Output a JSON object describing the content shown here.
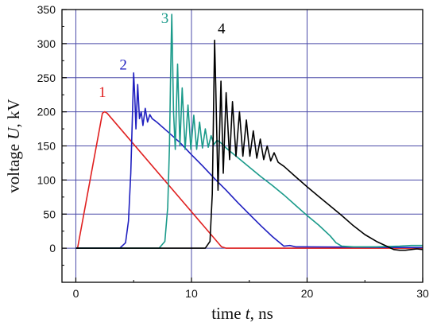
{
  "chart_data": {
    "type": "line",
    "title": "",
    "xlabel": {
      "prefix": "time ",
      "var": "t",
      "suffix": ", ns"
    },
    "ylabel": {
      "prefix": "voltage ",
      "var": "U",
      "suffix": ", kV"
    },
    "xlim": [
      -1.2,
      30
    ],
    "ylim": [
      -50,
      350
    ],
    "xticks": [
      0,
      10,
      20,
      30
    ],
    "yticks": [
      0,
      50,
      100,
      150,
      200,
      250,
      300,
      350
    ],
    "grid": true,
    "colors": {
      "grid": "#4a4aa8",
      "axis": "#000000"
    },
    "series": [
      {
        "name": "1",
        "color": "#e02020",
        "label_at": [
          2.3,
          222
        ],
        "x": [
          0,
          0.15,
          2.3,
          2.5,
          2.7,
          12.6,
          13.0,
          30
        ],
        "y": [
          0,
          0,
          198,
          200,
          198,
          2,
          0,
          0
        ]
      },
      {
        "name": "2",
        "color": "#2020c0",
        "label_at": [
          4.1,
          262
        ],
        "x": [
          0,
          3.8,
          4.3,
          4.55,
          4.75,
          4.9,
          5.0,
          5.1,
          5.2,
          5.35,
          5.5,
          5.65,
          5.8,
          6.0,
          6.2,
          6.4,
          6.6,
          7.0,
          8,
          9,
          10,
          11,
          12,
          13,
          14,
          15,
          16,
          17,
          18,
          18.5,
          19,
          30
        ],
        "y": [
          0,
          0,
          8,
          40,
          110,
          200,
          257,
          220,
          175,
          240,
          190,
          200,
          180,
          205,
          185,
          196,
          190,
          185,
          170,
          155,
          137,
          120,
          102,
          85,
          67,
          50,
          33,
          17,
          3,
          4,
          2,
          1
        ]
      },
      {
        "name": "3",
        "color": "#1a9a8a",
        "label_at": [
          7.7,
          330
        ],
        "x": [
          0,
          7.2,
          7.7,
          7.95,
          8.1,
          8.2,
          8.3,
          8.45,
          8.6,
          8.8,
          9.0,
          9.2,
          9.45,
          9.7,
          9.95,
          10.2,
          10.45,
          10.7,
          10.95,
          11.2,
          11.45,
          11.7,
          11.95,
          12.2,
          12.5,
          13,
          14,
          15,
          16,
          17,
          18,
          19,
          20,
          21,
          22,
          22.5,
          23,
          24,
          26,
          28,
          29,
          30
        ],
        "y": [
          0,
          0,
          10,
          60,
          150,
          260,
          343,
          200,
          145,
          270,
          150,
          235,
          145,
          210,
          145,
          195,
          145,
          185,
          147,
          175,
          148,
          165,
          152,
          158,
          155,
          147,
          133,
          119,
          105,
          92,
          78,
          63,
          48,
          34,
          18,
          8,
          3,
          2,
          2,
          3,
          4,
          4
        ]
      },
      {
        "name": "4",
        "color": "#000000",
        "label_at": [
          12.6,
          315
        ],
        "x": [
          0,
          11.2,
          11.6,
          11.8,
          11.9,
          12.0,
          12.1,
          12.3,
          12.55,
          12.75,
          13.0,
          13.3,
          13.55,
          13.85,
          14.15,
          14.45,
          14.75,
          15.05,
          15.35,
          15.65,
          15.95,
          16.25,
          16.55,
          16.85,
          17.15,
          17.5,
          18,
          19,
          20,
          21,
          22,
          23,
          24,
          25,
          26,
          27,
          27.5,
          28,
          28.5,
          29,
          29.5,
          30
        ],
        "y": [
          0,
          0,
          10,
          80,
          190,
          305,
          240,
          85,
          245,
          110,
          228,
          130,
          215,
          135,
          200,
          135,
          188,
          135,
          172,
          132,
          160,
          130,
          150,
          128,
          140,
          126,
          120,
          105,
          90,
          76,
          62,
          48,
          33,
          20,
          10,
          2,
          -2,
          -3,
          -3,
          -2,
          -1,
          -2
        ]
      }
    ]
  }
}
